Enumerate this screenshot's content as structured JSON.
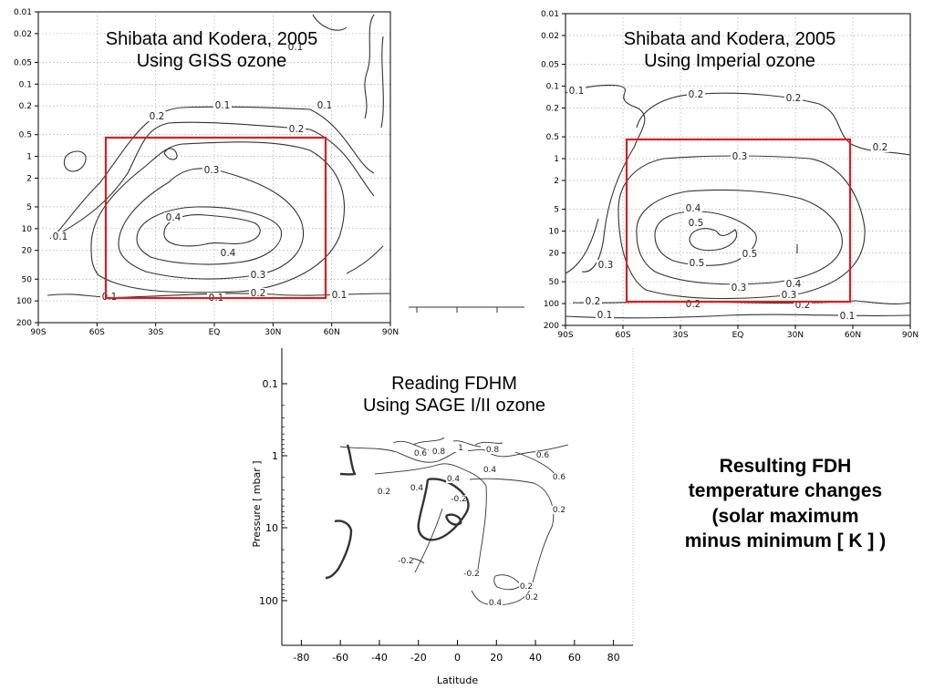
{
  "chart_data": [
    {
      "type": "contour",
      "title_lines": [
        "Shibata and Kodera, 2005",
        "Using GISS ozone"
      ],
      "xlabel": "",
      "ylabel": "",
      "x_ticks": [
        "90S",
        "60S",
        "30S",
        "EQ",
        "30N",
        "60N",
        "90N"
      ],
      "y_ticks": [
        "0.01",
        "0.02",
        "0.05",
        "0.1",
        "0.2",
        "0.5",
        "1",
        "2",
        "5",
        "10",
        "20",
        "50",
        "100",
        "200"
      ],
      "y_scale": "log-pressure",
      "contour_levels": [
        0.1,
        0.2,
        0.3,
        0.4
      ],
      "contour_labels": [
        "0.1",
        "0.1",
        "0.1",
        "0.1",
        "0.1",
        "0.1",
        "0.1",
        "0.2",
        "0.2",
        "0.2",
        "0.3",
        "0.3",
        "0.4",
        "0.4"
      ],
      "highlight_box": {
        "lat_range": [
          "60S",
          "58N"
        ],
        "pressure_range": [
          "0.5",
          "100"
        ],
        "color": "#d62020"
      },
      "grid": true
    },
    {
      "type": "contour",
      "title_lines": [
        "Shibata and Kodera, 2005",
        "Using Imperial ozone"
      ],
      "xlabel": "",
      "ylabel": "",
      "x_ticks": [
        "90S",
        "60S",
        "30S",
        "EQ",
        "30N",
        "60N",
        "90N"
      ],
      "y_ticks": [
        "0.01",
        "0.02",
        "0.05",
        "0.1",
        "0.2",
        "0.5",
        "1",
        "2",
        "5",
        "10",
        "20",
        "50",
        "100",
        "200"
      ],
      "y_scale": "log-pressure",
      "contour_levels": [
        0.1,
        0.2,
        0.3,
        0.4,
        0.5
      ],
      "contour_labels": [
        "0.1",
        "0.1",
        "0.1",
        "0.2",
        "0.2",
        "0.2",
        "0.2",
        "0.2",
        "0.2",
        "0.3",
        "0.3",
        "0.3",
        "0.3",
        "0.4",
        "0.4",
        "0.5",
        "0.5",
        "0.5"
      ],
      "highlight_box": {
        "lat_range": [
          "57S",
          "58N"
        ],
        "pressure_range": [
          "0.5",
          "100"
        ],
        "color": "#d62020"
      },
      "grid": true
    },
    {
      "type": "contour",
      "title_lines": [
        "Reading FDHM",
        "Using SAGE I/II ozone"
      ],
      "xlabel": "Latitude",
      "ylabel": "Pressure [ mbar ]",
      "x_ticks": [
        "-80",
        "-60",
        "-40",
        "-20",
        "0",
        "20",
        "40",
        "60",
        "80"
      ],
      "y_ticks": [
        "0.1",
        "1",
        "10",
        "100"
      ],
      "y_scale": "log-pressure",
      "xlim": [
        -90,
        90
      ],
      "contour_labels": [
        "0.6",
        "0.8",
        "1",
        "0.8",
        "0.6",
        "0.6",
        "0.4",
        "0.4",
        "0.2",
        "0.4",
        "-0.2",
        "0.2",
        "-0.2",
        "-0.2",
        "0.2",
        "0.4",
        "0.2"
      ],
      "grid": false
    }
  ],
  "caption": {
    "lines": [
      "Resulting FDH",
      "temperature changes",
      "(solar maximum",
      "minus minimum [ K ] )"
    ]
  }
}
